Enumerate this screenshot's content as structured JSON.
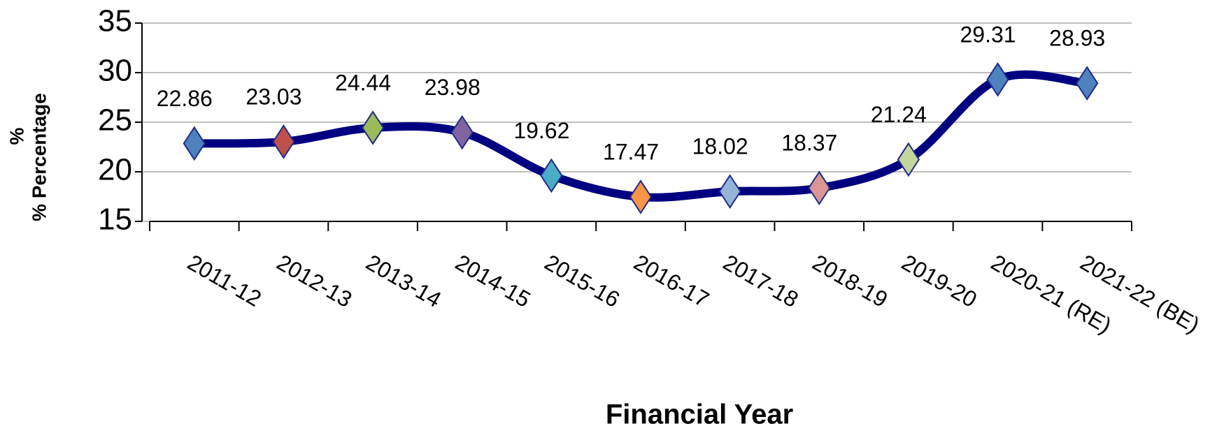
{
  "chart_data": {
    "type": "line",
    "xlabel": "Financial Year",
    "ylabel": "% Percentage",
    "y_axis_mark": "%",
    "categories": [
      "2011-12",
      "2012-13",
      "2013-14",
      "2014-15",
      "2015-16",
      "2016-17",
      "2017-18",
      "2018-19",
      "2019-20",
      "2020-21 (RE)",
      "2021-22 (BE)"
    ],
    "series": [
      {
        "name": "% Percentage",
        "color": "#000080",
        "values": [
          22.86,
          23.03,
          24.44,
          23.98,
          19.62,
          17.47,
          18.02,
          18.37,
          21.24,
          29.31,
          28.93
        ],
        "marker_colors": [
          "#4f81bd",
          "#c0504d",
          "#9bbb59",
          "#8064a2",
          "#4bacc6",
          "#f79646",
          "#95b3d7",
          "#d99694",
          "#c3d69b",
          "#4f81bd",
          "#4f81bd"
        ]
      }
    ],
    "ylim": [
      15,
      35
    ],
    "yticks": [
      15,
      20,
      25,
      30,
      35
    ],
    "grid": true
  }
}
